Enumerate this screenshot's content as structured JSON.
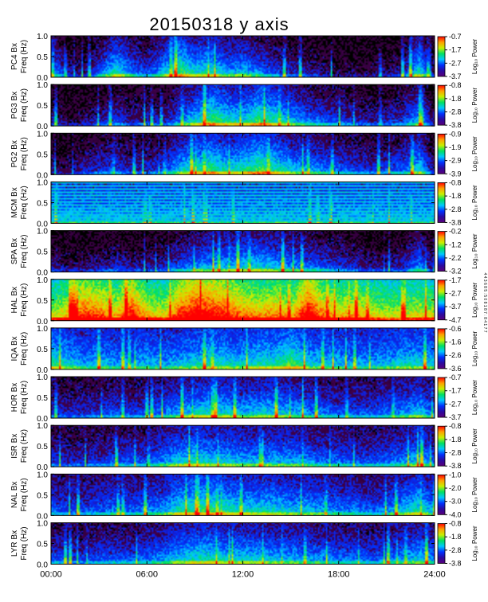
{
  "title": "20150318 y axis",
  "colors": {
    "background": "#ffffff",
    "axes": "#000000",
    "colorbar_stops": [
      "#5a0078",
      "#2a0aa0",
      "#0030ff",
      "#00c8ff",
      "#00e060",
      "#c8f000",
      "#ffa000",
      "#ff0000"
    ]
  },
  "chart_data": {
    "type": "heatmap",
    "x_tick_labels": [
      "00:00",
      "06:00",
      "12:00",
      "18:00",
      "24:00"
    ],
    "x_range_hours": [
      0,
      24
    ],
    "y_range_hz": [
      0,
      1.0
    ],
    "y_tick_labels": [
      "0.0",
      "0.5",
      "1.0"
    ],
    "colorbar_label": "Log₁₀ Power",
    "side_note": "4 4 3 6 8 5 : 5 0 8 1 8 7 : 8 4 1 7 7",
    "panels": [
      {
        "station": "PC4",
        "ylabel_line1": "PC4  Bx",
        "ylabel_line2": "Freq  (Hz)",
        "colorbar_ticks": [
          "-0.7",
          "-1.7",
          "-2.7",
          "-3.7"
        ],
        "colorbar_range": [
          -3.7,
          -0.7
        ],
        "activity": [
          0.45,
          0.2,
          0.1,
          0.35,
          0.6,
          0.4,
          0.3,
          0.5,
          0.7,
          0.55,
          0.6,
          0.45,
          0.5,
          0.4,
          0.3,
          0.25,
          0.2,
          0.15,
          0.1,
          0.1,
          0.1,
          0.15,
          0.2,
          0.6,
          0.1
        ],
        "baseline": 0.05
      },
      {
        "station": "PG3",
        "ylabel_line1": "PG3  Bx",
        "ylabel_line2": "Freq  (Hz)",
        "colorbar_ticks": [
          "-0.8",
          "-1.8",
          "-2.8",
          "-3.8"
        ],
        "colorbar_range": [
          -3.8,
          -0.8
        ],
        "activity": [
          0.2,
          0.1,
          0.15,
          0.2,
          0.3,
          0.2,
          0.25,
          0.2,
          0.4,
          0.55,
          0.7,
          0.6,
          0.55,
          0.7,
          0.6,
          0.5,
          0.4,
          0.35,
          0.3,
          0.25,
          0.2,
          0.25,
          0.3,
          0.5,
          0.1
        ],
        "baseline": 0.05
      },
      {
        "station": "PG2",
        "ylabel_line1": "PG2  Bx",
        "ylabel_line2": "Freq  (Hz)",
        "colorbar_ticks": [
          "-0.9",
          "-1.9",
          "-2.9",
          "-3.9"
        ],
        "colorbar_range": [
          -3.9,
          -0.9
        ],
        "activity": [
          0.15,
          0.1,
          0.2,
          0.25,
          0.3,
          0.2,
          0.25,
          0.3,
          0.5,
          0.6,
          0.65,
          0.55,
          0.6,
          0.7,
          0.6,
          0.5,
          0.45,
          0.4,
          0.35,
          0.3,
          0.25,
          0.3,
          0.35,
          0.55,
          0.1
        ],
        "baseline": 0.06
      },
      {
        "station": "MCM",
        "ylabel_line1": "MCM  Bx",
        "ylabel_line2": "Freq  (Hz)",
        "colorbar_ticks": [
          "-0.8",
          "-1.8",
          "-2.8",
          "-3.8"
        ],
        "colorbar_range": [
          -3.8,
          -0.8
        ],
        "activity": [
          0.3,
          0.3,
          0.3,
          0.3,
          0.3,
          0.3,
          0.3,
          0.3,
          0.3,
          0.3,
          0.3,
          0.3,
          0.3,
          0.3,
          0.3,
          0.3,
          0.3,
          0.3,
          0.3,
          0.3,
          0.3,
          0.3,
          0.3,
          0.3,
          0.3
        ],
        "baseline": 0.2
      },
      {
        "station": "SPA",
        "ylabel_line1": "SPA  Bx",
        "ylabel_line2": "Freq  (Hz)",
        "colorbar_ticks": [
          "-0.2",
          "-1.2",
          "-2.2",
          "-3.2"
        ],
        "colorbar_range": [
          -3.2,
          -0.2
        ],
        "activity": [
          0.2,
          0.15,
          0.15,
          0.2,
          0.25,
          0.2,
          0.2,
          0.25,
          0.35,
          0.45,
          0.5,
          0.5,
          0.55,
          0.55,
          0.5,
          0.45,
          0.4,
          0.35,
          0.3,
          0.25,
          0.2,
          0.2,
          0.25,
          0.45,
          0.1
        ],
        "baseline": 0.04
      },
      {
        "station": "HAL",
        "ylabel_line1": "HAL  Bx",
        "ylabel_line2": "Freq  (Hz)",
        "colorbar_ticks": [
          "-1.7",
          "-2.7",
          "-3.7",
          "-4.7"
        ],
        "colorbar_range": [
          -4.7,
          -1.7
        ],
        "activity": [
          0.5,
          0.6,
          0.8,
          0.75,
          0.6,
          0.85,
          0.6,
          0.55,
          0.8,
          0.9,
          0.85,
          0.8,
          0.7,
          0.65,
          0.7,
          0.6,
          0.9,
          0.7,
          0.6,
          0.65,
          0.55,
          0.5,
          0.5,
          0.55,
          0.5
        ],
        "baseline": 0.35
      },
      {
        "station": "IQA",
        "ylabel_line1": "IQA  Bx",
        "ylabel_line2": "Freq  (Hz)",
        "colorbar_ticks": [
          "-0.6",
          "-1.6",
          "-2.6",
          "-3.6"
        ],
        "colorbar_range": [
          -3.6,
          -0.6
        ],
        "activity": [
          0.5,
          0.4,
          0.3,
          0.35,
          0.3,
          0.3,
          0.35,
          0.3,
          0.35,
          0.4,
          0.45,
          0.4,
          0.4,
          0.45,
          0.45,
          0.55,
          0.4,
          0.35,
          0.35,
          0.3,
          0.3,
          0.35,
          0.4,
          0.4,
          0.35
        ],
        "baseline": 0.18
      },
      {
        "station": "HOR",
        "ylabel_line1": "HOR  Bx",
        "ylabel_line2": "Freq  (Hz)",
        "colorbar_ticks": [
          "-0.7",
          "-1.7",
          "-2.7",
          "-3.7"
        ],
        "colorbar_range": [
          -3.7,
          -0.7
        ],
        "activity": [
          0.25,
          0.2,
          0.2,
          0.25,
          0.3,
          0.25,
          0.3,
          0.35,
          0.45,
          0.5,
          0.55,
          0.5,
          0.45,
          0.5,
          0.5,
          0.45,
          0.4,
          0.35,
          0.3,
          0.3,
          0.3,
          0.35,
          0.4,
          0.5,
          0.3
        ],
        "baseline": 0.08
      },
      {
        "station": "ISR",
        "ylabel_line1": "ISR  Bx",
        "ylabel_line2": "Freq  (Hz)",
        "colorbar_ticks": [
          "-0.8",
          "-1.8",
          "-2.8",
          "-3.8"
        ],
        "colorbar_range": [
          -3.8,
          -0.8
        ],
        "activity": [
          0.25,
          0.2,
          0.2,
          0.25,
          0.3,
          0.3,
          0.3,
          0.4,
          0.5,
          0.55,
          0.5,
          0.5,
          0.45,
          0.45,
          0.45,
          0.45,
          0.4,
          0.35,
          0.35,
          0.3,
          0.3,
          0.35,
          0.4,
          0.5,
          0.3
        ],
        "baseline": 0.08
      },
      {
        "station": "NAL",
        "ylabel_line1": "NAL  Bx",
        "ylabel_line2": "Freq  (Hz)",
        "colorbar_ticks": [
          "-1.0",
          "-2.0",
          "-3.0",
          "-4.0"
        ],
        "colorbar_range": [
          -4.0,
          -1.0
        ],
        "activity": [
          0.3,
          0.25,
          0.25,
          0.3,
          0.35,
          0.3,
          0.35,
          0.4,
          0.55,
          0.6,
          0.6,
          0.55,
          0.5,
          0.5,
          0.5,
          0.45,
          0.45,
          0.4,
          0.35,
          0.35,
          0.3,
          0.35,
          0.45,
          0.55,
          0.35
        ],
        "baseline": 0.1
      },
      {
        "station": "LYR",
        "ylabel_line1": "LYR  Bx",
        "ylabel_line2": "Freq  (Hz)",
        "colorbar_ticks": [
          "-0.8",
          "-1.8",
          "-2.8",
          "-3.8"
        ],
        "colorbar_range": [
          -3.8,
          -0.8
        ],
        "activity": [
          0.3,
          0.25,
          0.25,
          0.3,
          0.3,
          0.3,
          0.35,
          0.4,
          0.5,
          0.55,
          0.55,
          0.5,
          0.5,
          0.5,
          0.45,
          0.45,
          0.4,
          0.4,
          0.35,
          0.35,
          0.3,
          0.35,
          0.4,
          0.5,
          0.35
        ],
        "baseline": 0.08
      }
    ]
  }
}
